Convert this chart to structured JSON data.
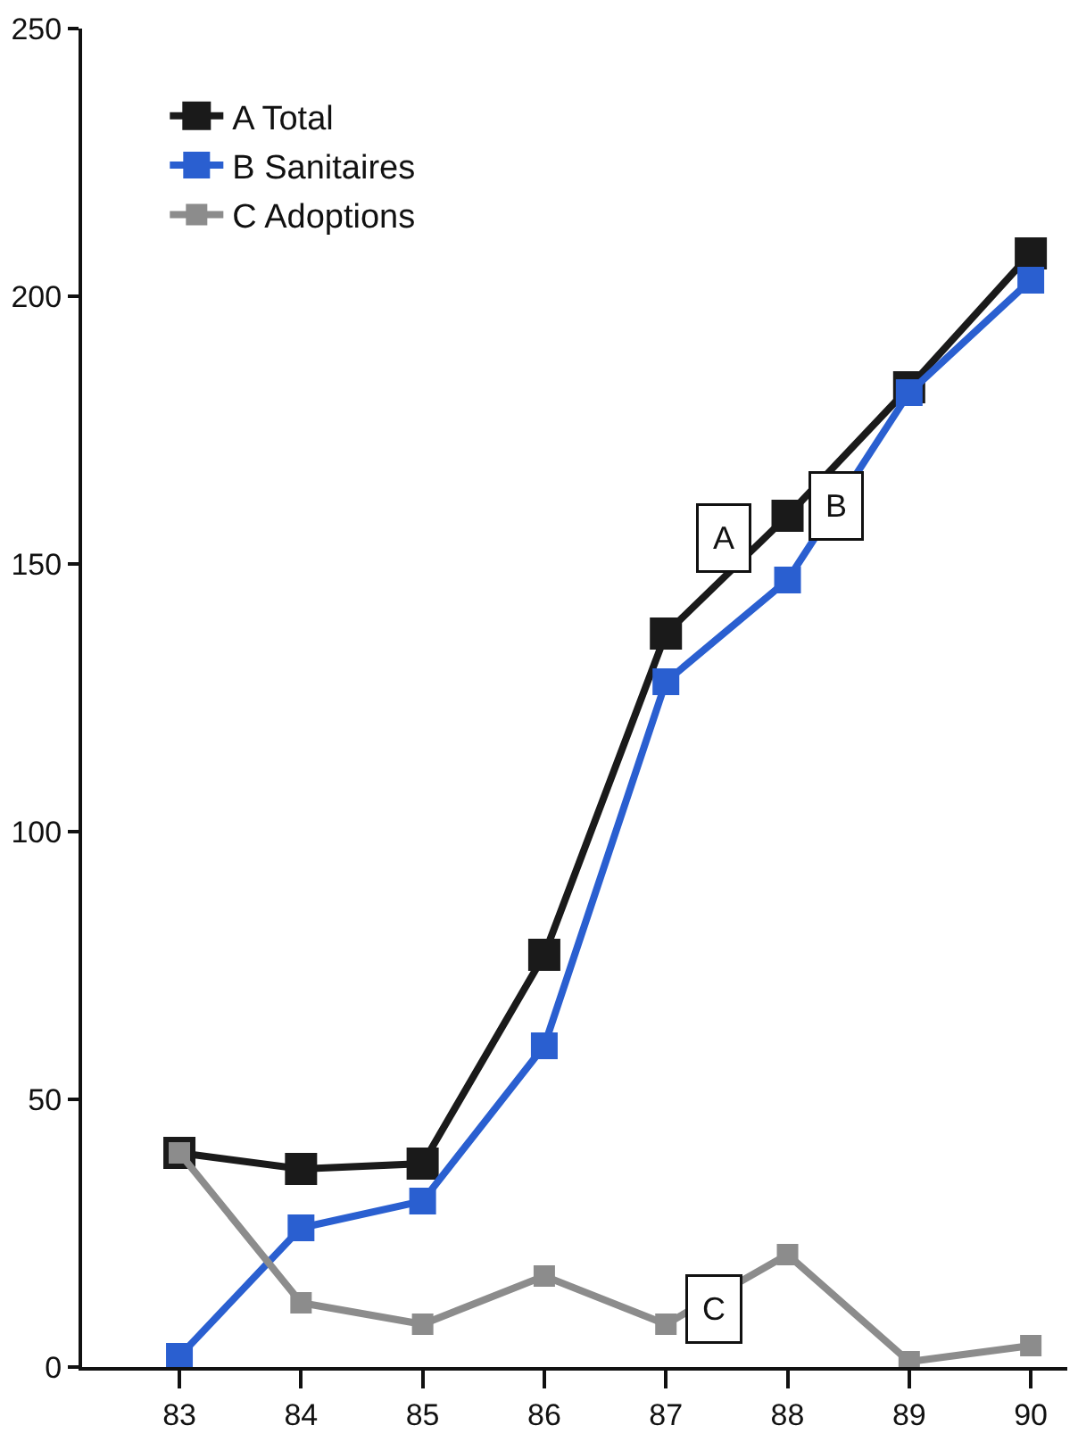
{
  "chart_data": {
    "type": "line",
    "x": [
      83,
      84,
      85,
      86,
      87,
      88,
      89,
      90
    ],
    "series": [
      {
        "name": "A Total",
        "color": "#1a1a1a",
        "values": [
          40,
          37,
          38,
          77,
          137,
          159,
          183,
          208
        ]
      },
      {
        "name": "B Sanitaires",
        "color": "#2a5fd0",
        "values": [
          2,
          26,
          31,
          60,
          128,
          147,
          182,
          203
        ]
      },
      {
        "name": "C Adoptions",
        "color": "#8c8c8c",
        "values": [
          40,
          12,
          8,
          17,
          8,
          21,
          1,
          4
        ]
      }
    ],
    "xlim": [
      82.2,
      90.3
    ],
    "xticks": [
      83,
      84,
      85,
      86,
      87,
      88,
      89,
      90
    ],
    "ylim": [
      0,
      250
    ],
    "yticks": [
      0,
      50,
      100,
      150,
      200,
      250
    ],
    "annotations": [
      {
        "text": "A",
        "x": 87.47,
        "y": 155
      },
      {
        "text": "B",
        "x": 88.4,
        "y": 161
      },
      {
        "text": "C",
        "x": 87.4,
        "y": 11
      }
    ],
    "legend": "top left",
    "marker": "square",
    "line_style": "solid"
  }
}
